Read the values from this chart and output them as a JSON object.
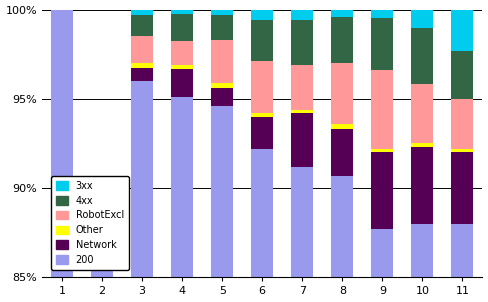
{
  "categories": [
    1,
    2,
    3,
    4,
    5,
    6,
    7,
    8,
    9,
    10,
    11
  ],
  "series": {
    "200": [
      100.0,
      85.5,
      96.0,
      95.1,
      94.6,
      92.2,
      91.2,
      90.7,
      87.7,
      88.0,
      88.0
    ],
    "Network": [
      0.0,
      1.4,
      0.75,
      1.55,
      1.0,
      1.8,
      3.0,
      2.6,
      4.3,
      4.3,
      4.0
    ],
    "Other": [
      0.0,
      0.35,
      0.25,
      0.25,
      0.3,
      0.2,
      0.2,
      0.3,
      0.2,
      0.25,
      0.2
    ],
    "RobotExcl": [
      0.0,
      1.55,
      1.5,
      1.35,
      2.4,
      2.9,
      2.5,
      3.4,
      4.4,
      3.3,
      2.8
    ],
    "4xx": [
      0.0,
      0.85,
      1.2,
      1.5,
      1.4,
      2.3,
      2.5,
      2.6,
      2.9,
      3.1,
      2.7
    ],
    "3xx": [
      0.0,
      0.35,
      0.3,
      0.25,
      0.3,
      0.6,
      0.6,
      0.4,
      0.5,
      1.05,
      2.3
    ]
  },
  "colors": {
    "200": "#9999ee",
    "Network": "#550055",
    "Other": "#ffff00",
    "RobotExcl": "#ff9999",
    "4xx": "#336644",
    "3xx": "#00ccee"
  },
  "ylim": [
    85,
    100
  ],
  "yticks": [
    85,
    90,
    95,
    100
  ],
  "ytick_labels": [
    "85%",
    "90%",
    "95%",
    "100%"
  ],
  "legend_order": [
    "3xx",
    "4xx",
    "RobotExcl",
    "Other",
    "Network",
    "200"
  ],
  "plot_order": [
    "200",
    "Network",
    "Other",
    "RobotExcl",
    "4xx",
    "3xx"
  ],
  "figsize": [
    4.88,
    3.02
  ],
  "dpi": 100,
  "bar_width": 0.55
}
